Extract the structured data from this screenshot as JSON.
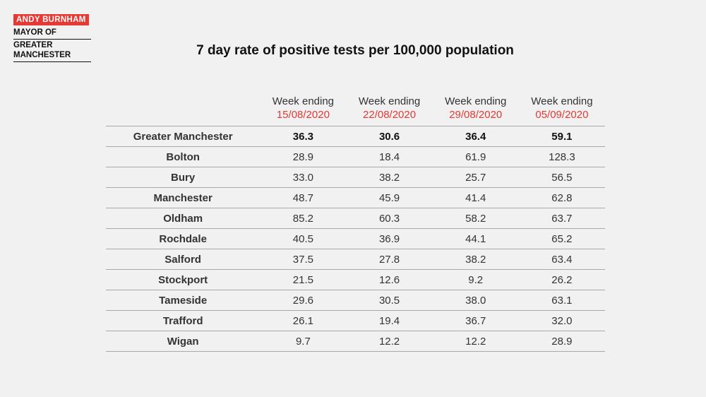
{
  "logo": {
    "name": "ANDY BURNHAM",
    "lines": [
      "MAYOR OF",
      "GREATER",
      "MANCHESTER"
    ]
  },
  "title": "7 day rate of positive tests per 100,000 population",
  "table": {
    "columns": [
      {
        "top": "Week ending",
        "date": "15/08/2020"
      },
      {
        "top": "Week ending",
        "date": "22/08/2020"
      },
      {
        "top": "Week ending",
        "date": "29/08/2020"
      },
      {
        "top": "Week ending",
        "date": "05/09/2020"
      }
    ],
    "rows": [
      {
        "region": "Greater Manchester",
        "values": [
          "36.3",
          "30.6",
          "36.4",
          "59.1"
        ]
      },
      {
        "region": "Bolton",
        "values": [
          "28.9",
          "18.4",
          "61.9",
          "128.3"
        ]
      },
      {
        "region": "Bury",
        "values": [
          "33.0",
          "38.2",
          "25.7",
          "56.5"
        ]
      },
      {
        "region": "Manchester",
        "values": [
          "48.7",
          "45.9",
          "41.4",
          "62.8"
        ]
      },
      {
        "region": "Oldham",
        "values": [
          "85.2",
          "60.3",
          "58.2",
          "63.7"
        ]
      },
      {
        "region": "Rochdale",
        "values": [
          "40.5",
          "36.9",
          "44.1",
          "65.2"
        ]
      },
      {
        "region": "Salford",
        "values": [
          "37.5",
          "27.8",
          "38.2",
          "63.4"
        ]
      },
      {
        "region": "Stockport",
        "values": [
          "21.5",
          "12.6",
          "9.2",
          "26.2"
        ]
      },
      {
        "region": "Tameside",
        "values": [
          "29.6",
          "30.5",
          "38.0",
          "63.1"
        ]
      },
      {
        "region": "Trafford",
        "values": [
          "26.1",
          "19.4",
          "36.7",
          "32.0"
        ]
      },
      {
        "region": "Wigan",
        "values": [
          "9.7",
          "12.2",
          "12.2",
          "28.9"
        ]
      }
    ]
  },
  "colors": {
    "accent": "#e53935",
    "rule": "#a9a9a9",
    "background": "#f1f1f1"
  }
}
